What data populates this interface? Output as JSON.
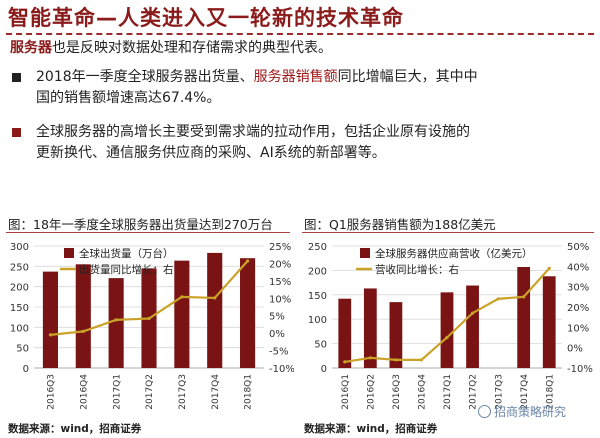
{
  "slide": {
    "title": "智能革命—人类进入又一轮新的技术革命",
    "subtitle_prefix": "服务器",
    "subtitle_rest": "也是反映对数据处理和存储需求的典型代表。",
    "bullet1_line1_pre": "2018年一季度全球服务器出货量、",
    "bullet1_line1_red": "服务器销售额",
    "bullet1_line1_post": "同比增幅巨大，其中中",
    "bullet1_line2": "国的销售额增速高达67.4%。",
    "bullet2_line1": "全球服务器的高增长主要受到需求端的拉动作用，包括企业原有设施的",
    "bullet2_line2": "更新换代、通信服务供应商的采购、AI系统的新部署等。"
  },
  "charts": {
    "left": {
      "caption": "图：18年一季度全球服务器出货量达到270万台",
      "source": "数据来源：wind，招商证券"
    },
    "right": {
      "caption": "图：Q1服务器销售额为188亿美元",
      "source": "数据来源：wind，招商证券"
    }
  },
  "watermark": {
    "text": "招商策略研究"
  },
  "colors": {
    "bar": "#7a1414",
    "line": "#c9a227",
    "accent": "#8b1a1a"
  },
  "chart_data": [
    {
      "type": "bar",
      "title": "18年一季度全球服务器出货量达到270万台",
      "categories": [
        "2016Q3",
        "2016Q4",
        "2017Q1",
        "2017Q2",
        "2017Q3",
        "2017Q4",
        "2018Q1"
      ],
      "series": [
        {
          "name": "全球出货量（万台）",
          "type": "bar",
          "axis": "left",
          "values": [
            237,
            255,
            221,
            245,
            264,
            283,
            270
          ]
        },
        {
          "name": "出货量同比增长：右",
          "type": "line",
          "axis": "right",
          "values": [
            -0.5,
            0.5,
            3.8,
            4.2,
            10.4,
            10.1,
            20.7
          ]
        }
      ],
      "yleft": {
        "ylim": [
          0,
          300
        ],
        "ticks": [
          "0",
          "50",
          "100",
          "150",
          "200",
          "250",
          "300"
        ]
      },
      "yright": {
        "ylim": [
          -10,
          25
        ],
        "ticks": [
          "-10%",
          "-5%",
          "0%",
          "5%",
          "10%",
          "15%",
          "20%",
          "25%"
        ]
      }
    },
    {
      "type": "bar",
      "title": "Q1服务器销售额为188亿美元",
      "categories": [
        "2016Q1",
        "2016Q2",
        "2016Q3",
        "2016Q4",
        "2017Q1",
        "2017Q2",
        "2017Q3",
        "2017Q4",
        "2018Q1"
      ],
      "tick_labels": [
        "2016Q1",
        "2016Q2",
        "2016Q3",
        "2016Q4",
        "2017Q1",
        "2017Q2",
        "2017Q3",
        "2017Q4",
        "2018Q1"
      ],
      "series": [
        {
          "name": "全球服务器供应商营收（亿美元）",
          "type": "bar",
          "axis": "left",
          "values": [
            142,
            163,
            135,
            null,
            155,
            169,
            null,
            207,
            188
          ]
        },
        {
          "name": "营收同比增长：右",
          "type": "line",
          "axis": "right",
          "values": [
            -7,
            -5,
            -6,
            -6,
            5,
            17,
            24,
            25,
            39
          ]
        }
      ],
      "yleft": {
        "ylim": [
          0,
          250
        ],
        "ticks": [
          "0",
          "50",
          "100",
          "150",
          "200",
          "250"
        ]
      },
      "yright": {
        "ylim": [
          -10,
          50
        ],
        "ticks": [
          "-10%",
          "0%",
          "10%",
          "20%",
          "30%",
          "40%",
          "50%"
        ]
      }
    }
  ]
}
